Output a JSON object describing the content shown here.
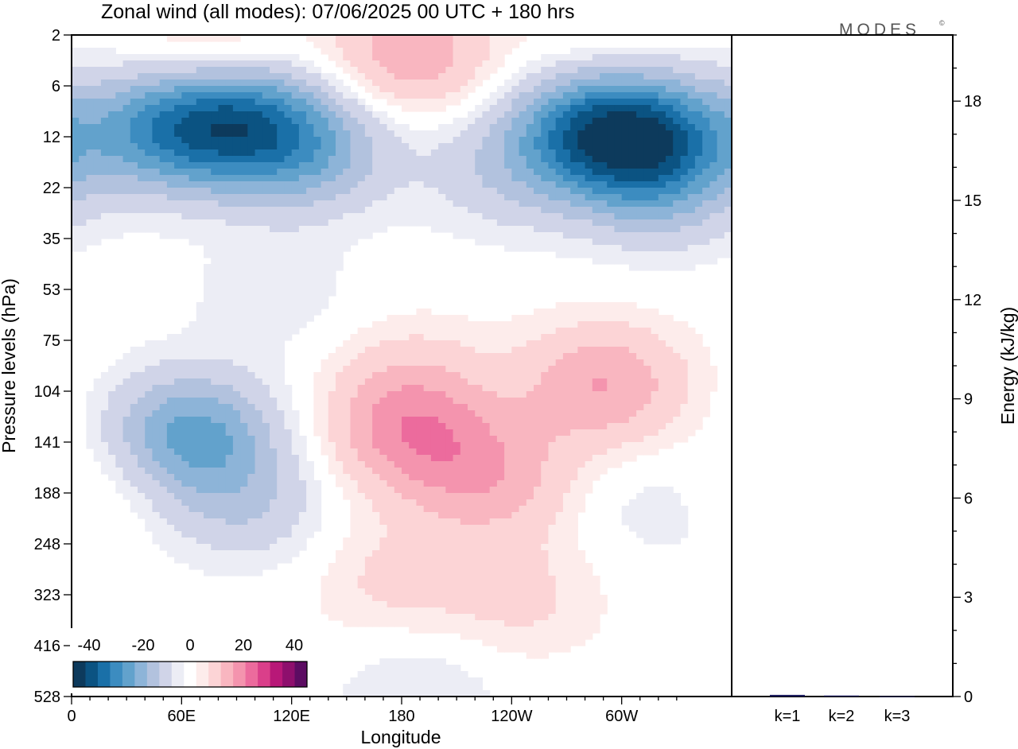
{
  "chart_data": {
    "type": "heatmap",
    "title": "Zonal wind (all modes):  07/06/2025  00 UTC  + 180 hrs",
    "brand": "MODES",
    "brand_mark": "©",
    "xlabel": "Longitude",
    "ylabel": "Pressure levels (hPa)",
    "y2label": "Energy (kJ/kg)",
    "x_ticks": [
      "0",
      "60E",
      "120E",
      "180",
      "120W",
      "60W"
    ],
    "x_tick_values": [
      0,
      60,
      120,
      180,
      240,
      300
    ],
    "xlim": [
      0,
      360
    ],
    "y_ticks": [
      "2",
      "6",
      "12",
      "22",
      "35",
      "53",
      "75",
      "104",
      "141",
      "188",
      "248",
      "323",
      "416",
      "528"
    ],
    "y2_ticks": [
      "0",
      "3",
      "6",
      "9",
      "12",
      "15",
      "18"
    ],
    "y2lim": [
      0,
      20
    ],
    "colorbar": {
      "tick_labels": [
        "-40",
        "-20",
        "0",
        "20",
        "40"
      ],
      "colors": [
        "#0d3a5c",
        "#0b5382",
        "#1a70a8",
        "#3c8cc0",
        "#62a2cc",
        "#8db4d8",
        "#b2c2de",
        "#d0d4e8",
        "#ecedf5",
        "#ffffff",
        "#fdeceb",
        "#fcd4d6",
        "#f9b6c0",
        "#f494ae",
        "#ec6b9d",
        "#da3f8a",
        "#b81878",
        "#8e0f6d",
        "#5c0c62"
      ]
    },
    "field_features": [
      {
        "lon": 90,
        "p": 10,
        "v": -28
      },
      {
        "lon": 45,
        "p": 11,
        "v": -20
      },
      {
        "lon": 130,
        "p": 14,
        "v": -16
      },
      {
        "lon": 285,
        "p": 11,
        "v": -28
      },
      {
        "lon": 320,
        "p": 12,
        "v": -22
      },
      {
        "lon": 235,
        "p": 18,
        "v": -8
      },
      {
        "lon": 320,
        "p": 22,
        "v": -12
      },
      {
        "lon": 185,
        "p": 3,
        "v": 14
      },
      {
        "lon": 75,
        "p": 2.5,
        "v": 8
      },
      {
        "lon": 290,
        "p": 2.5,
        "v": 4
      },
      {
        "lon": 65,
        "p": 135,
        "v": -22
      },
      {
        "lon": 95,
        "p": 200,
        "v": -9
      },
      {
        "lon": 185,
        "p": 135,
        "v": 16
      },
      {
        "lon": 230,
        "p": 175,
        "v": 12
      },
      {
        "lon": 290,
        "p": 100,
        "v": 15
      },
      {
        "lon": 245,
        "p": 330,
        "v": 6
      },
      {
        "lon": 185,
        "p": 95,
        "v": 6
      },
      {
        "lon": 15,
        "p": 175,
        "v": 4
      },
      {
        "lon": 320,
        "p": 200,
        "v": -4
      },
      {
        "lon": 190,
        "p": 515,
        "v": -5
      },
      {
        "lon": 110,
        "p": 55,
        "v": -4
      },
      {
        "lon": 175,
        "p": 300,
        "v": 6
      }
    ],
    "bars": [
      {
        "label": "k=1",
        "value": 0.05,
        "color": "#1c1c5e"
      },
      {
        "label": "k=2",
        "value": 0.03,
        "color": "#1c1c5e"
      },
      {
        "label": "k=3",
        "value": 0.01,
        "color": "#1c1c5e"
      }
    ]
  }
}
